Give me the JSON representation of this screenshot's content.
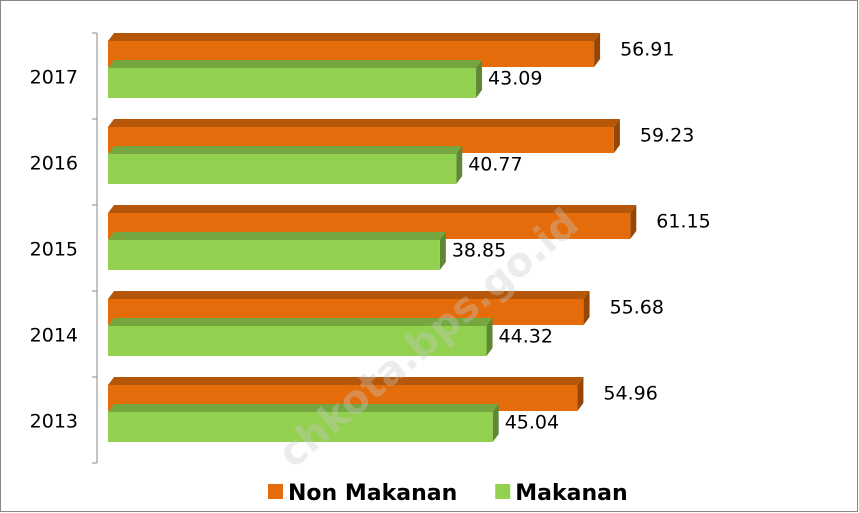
{
  "chart_data": {
    "type": "bar",
    "orientation": "horizontal",
    "categories": [
      "2017",
      "2016",
      "2015",
      "2014",
      "2013"
    ],
    "series": [
      {
        "name": "Non Makanan",
        "color": "#e46c0a",
        "values": [
          56.91,
          59.23,
          61.15,
          55.68,
          54.96
        ]
      },
      {
        "name": "Makanan",
        "color": "#92d050",
        "values": [
          43.09,
          40.77,
          38.85,
          44.32,
          45.04
        ]
      }
    ],
    "xlim": [
      0,
      85
    ],
    "legend": "bottom",
    "watermark": "chkota.bps.go.id"
  }
}
